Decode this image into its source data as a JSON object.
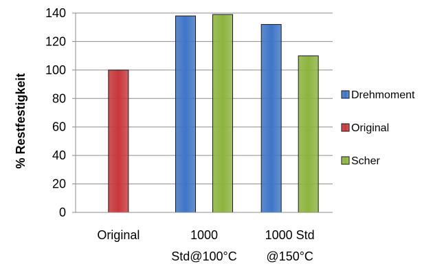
{
  "chart_data": {
    "type": "bar",
    "categories": [
      [
        "Original"
      ],
      [
        "1000",
        "Std@100°C"
      ],
      [
        "1000 Std",
        "@150°C"
      ]
    ],
    "series": [
      {
        "name": "Drehmoment",
        "color": "#3F75C6",
        "values": [
          null,
          138,
          132
        ]
      },
      {
        "name": "Original",
        "color": "#C8373A",
        "values": [
          100,
          null,
          null
        ]
      },
      {
        "name": "Scher",
        "color": "#8DB43F",
        "values": [
          null,
          139,
          110
        ]
      }
    ],
    "bar_slots": [
      [
        {
          "series": "Original",
          "value": 100
        }
      ],
      [
        {
          "series": "Drehmoment",
          "value": 138
        },
        {
          "series": "Scher",
          "value": 139
        }
      ],
      [
        {
          "series": "Drehmoment",
          "value": 132
        },
        {
          "series": "Scher",
          "value": 110
        }
      ]
    ],
    "ylabel": "% Restfestigkeit",
    "ylim": [
      0,
      140
    ],
    "yticks": [
      0,
      20,
      40,
      60,
      80,
      100,
      120,
      140
    ],
    "grid": true,
    "legend_position": "right"
  }
}
